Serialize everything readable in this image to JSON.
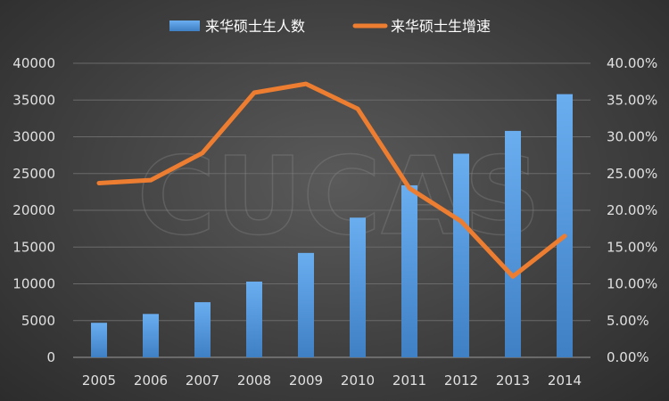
{
  "chart_data": {
    "type": "bar+line",
    "title": "",
    "categories": [
      "2005",
      "2006",
      "2007",
      "2008",
      "2009",
      "2010",
      "2011",
      "2012",
      "2013",
      "2014"
    ],
    "series": [
      {
        "name": "来华硕士生人数",
        "type": "bar",
        "axis": "left",
        "color": "#5b9bd5",
        "values": [
          4700,
          5900,
          7500,
          10300,
          14200,
          19000,
          23400,
          27700,
          30800,
          35800
        ]
      },
      {
        "name": "来华硕士生增速",
        "type": "line",
        "axis": "right",
        "color": "#ed7d31",
        "values": [
          0.237,
          0.241,
          0.278,
          0.36,
          0.372,
          0.338,
          0.23,
          0.185,
          0.11,
          0.165
        ]
      }
    ],
    "y_left": {
      "min": 0,
      "max": 40000,
      "step": 5000,
      "ticks": [
        "0",
        "5000",
        "10000",
        "15000",
        "20000",
        "25000",
        "30000",
        "35000",
        "40000"
      ]
    },
    "y_right": {
      "min": 0,
      "max": 0.4,
      "step": 0.05,
      "ticks": [
        "0.00%",
        "5.00%",
        "10.00%",
        "15.00%",
        "20.00%",
        "25.00%",
        "30.00%",
        "35.00%",
        "40.00%"
      ]
    },
    "legend": "top",
    "grid": true,
    "watermark": "CUCAS"
  }
}
